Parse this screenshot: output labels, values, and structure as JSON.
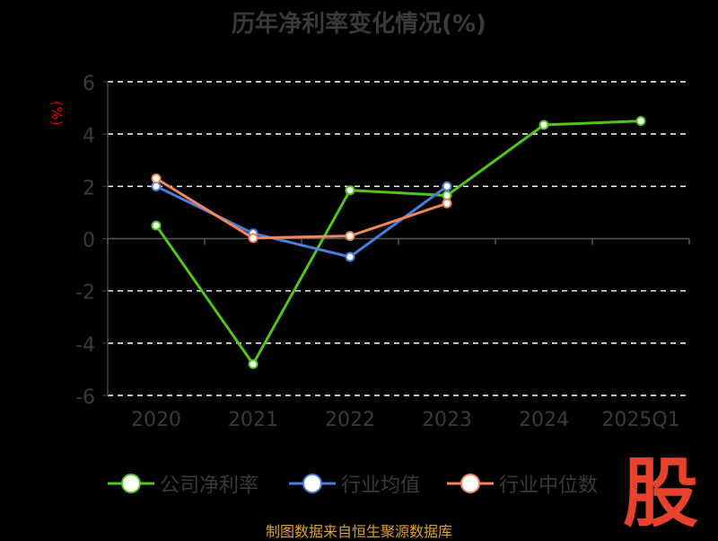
{
  "chart_data": {
    "type": "line",
    "title": "历年净利率变化情况(%)",
    "ylabel": "(%)",
    "xlabel": "",
    "categories": [
      "2020",
      "2021",
      "2022",
      "2023",
      "2024",
      "2025Q1"
    ],
    "ylim": [
      -6,
      6
    ],
    "yticks": [
      "6",
      "4",
      "2",
      "0",
      "-2",
      "-4",
      "-6"
    ],
    "grid": true,
    "legend_position": "bottom",
    "series": [
      {
        "name": "公司净利率",
        "color": "#52c41a",
        "values": [
          0.5,
          -4.8,
          1.85,
          1.65,
          4.35,
          4.5
        ]
      },
      {
        "name": "行业均值",
        "color": "#4a7fe0",
        "values": [
          2.0,
          0.2,
          -0.7,
          2.0,
          null,
          null
        ]
      },
      {
        "name": "行业中位数",
        "color": "#f4875a",
        "values": [
          2.3,
          0.02,
          0.1,
          1.35,
          null,
          null
        ]
      }
    ]
  },
  "footer": {
    "source": "制图数据来自恒生聚源数据库",
    "logo_text": "股"
  }
}
